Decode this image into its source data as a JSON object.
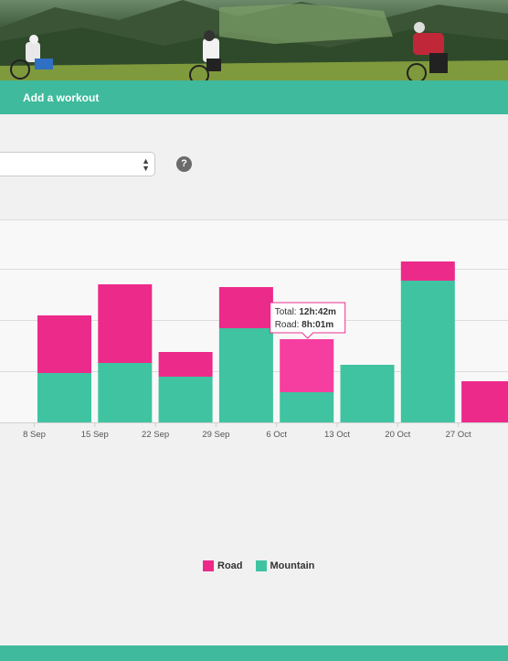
{
  "nav": {
    "add_workout": "Add a workout"
  },
  "help": {
    "icon": "question-mark-icon",
    "glyph": "?"
  },
  "select": {
    "arrows": "▲▼"
  },
  "colors": {
    "road": "#ec2a8a",
    "road_hover": "#f53ea0",
    "mountain": "#3fc3a0",
    "nav": "#3fba9c"
  },
  "chart_data": {
    "type": "bar",
    "stacked": true,
    "categories": [
      "8 Sep",
      "15 Sep",
      "22 Sep",
      "29 Sep",
      "6 Oct",
      "13 Oct",
      "20 Oct",
      "27 Oct"
    ],
    "series": [
      {
        "name": "Mountain",
        "values": [
          54,
          65,
          50,
          103,
          33,
          63,
          155,
          0
        ]
      },
      {
        "name": "Road",
        "values": [
          63,
          86,
          27,
          45,
          58,
          0,
          21,
          45
        ]
      }
    ],
    "grid": true,
    "legend_position": "bottom"
  },
  "tooltip": {
    "category": "6 Oct",
    "total_label": "Total:",
    "total_value": "12h:42m",
    "road_label": "Road:",
    "road_value": "8h:01m"
  }
}
